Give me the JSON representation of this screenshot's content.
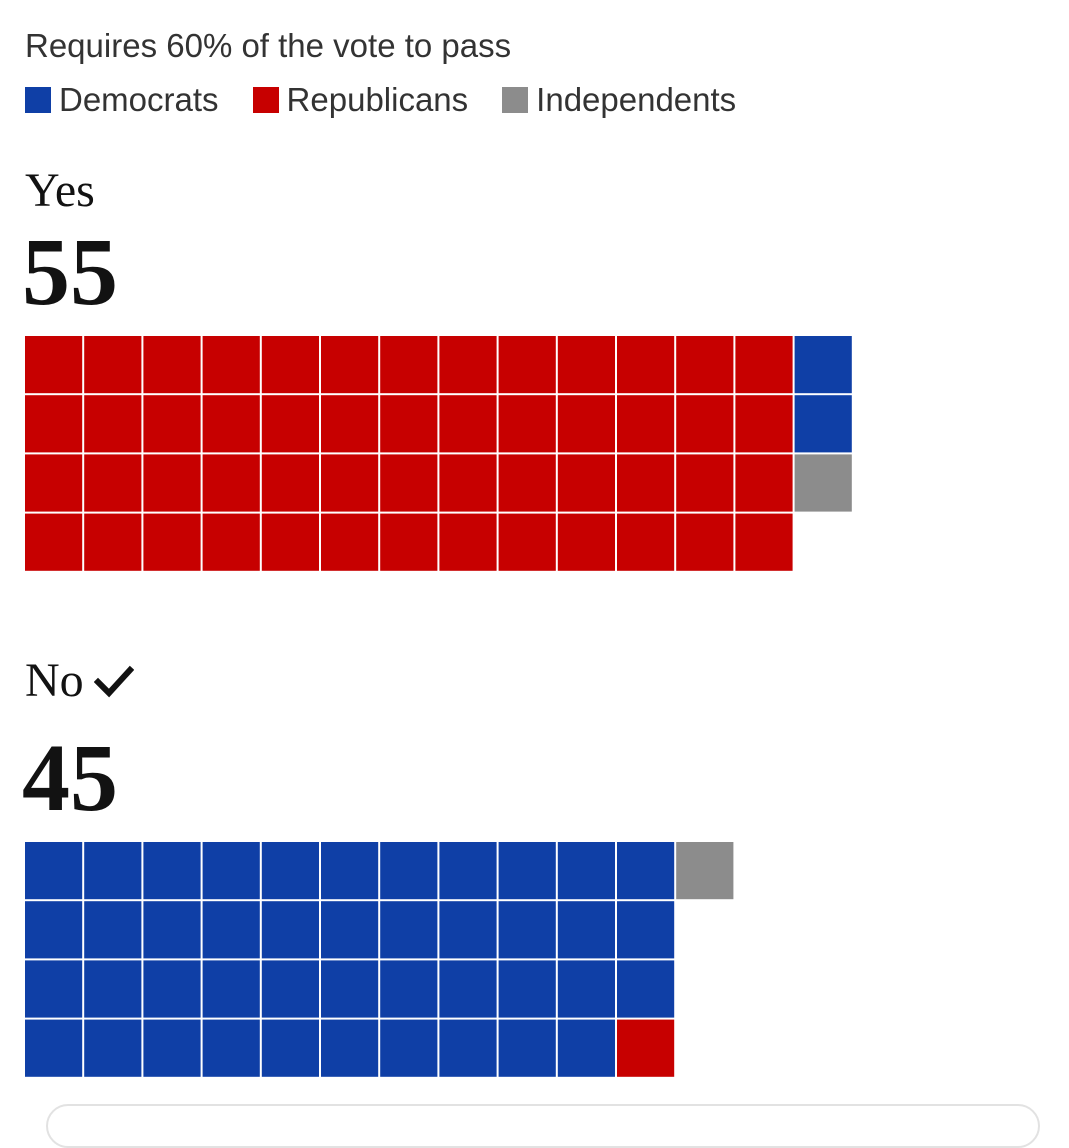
{
  "subtitle": "Requires 60% of the vote to pass",
  "legend": [
    {
      "label": "Democrats",
      "color": "#0f3fa6"
    },
    {
      "label": "Republicans",
      "color": "#c70000"
    },
    {
      "label": "Independents",
      "color": "#8c8c8c"
    }
  ],
  "chart_data": {
    "type": "waffle",
    "subtitle": "Requires 60% of the vote to pass",
    "threshold_percent": 60,
    "categories": [
      "Democrats",
      "Republicans",
      "Independents"
    ],
    "colors": {
      "Democrats": "#0f3fa6",
      "Republicans": "#c70000",
      "Independents": "#8c8c8c"
    },
    "rows_per_column": 4,
    "groups": [
      {
        "label": "Yes",
        "total": 55,
        "passed": false,
        "counts": {
          "Republicans": 52,
          "Democrats": 2,
          "Independents": 1
        }
      },
      {
        "label": "No",
        "total": 45,
        "passed": true,
        "counts": {
          "Democrats": 43,
          "Republicans": 1,
          "Independents": 1
        }
      }
    ]
  },
  "check_icon": "checkmark-icon"
}
